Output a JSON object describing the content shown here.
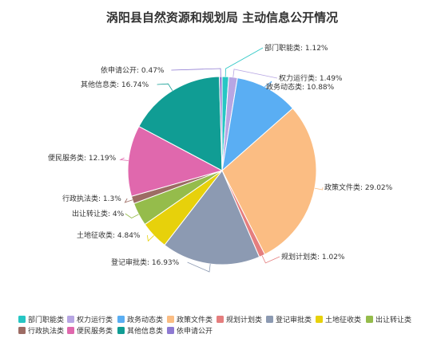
{
  "chart_data": {
    "type": "pie",
    "title": "涡阳县自然资源和规划局  主动信息公开情况",
    "slices": [
      {
        "label": "部门职能类",
        "value": 1.12,
        "display": "部门职能类: 1.12%",
        "color": "#26c6c4"
      },
      {
        "label": "权力运行类",
        "value": 1.49,
        "display": "权力运行类: 1.49%",
        "color": "#b7a6e3"
      },
      {
        "label": "政务动态类",
        "value": 10.88,
        "display": "政务动态类: 10.88%",
        "color": "#5aaef3"
      },
      {
        "label": "政策文件类",
        "value": 29.02,
        "display": "政策文件类: 29.02%",
        "color": "#fbbd83"
      },
      {
        "label": "规划计划类",
        "value": 1.02,
        "display": "规划计划类: 1.02%",
        "color": "#e57e7e"
      },
      {
        "label": "登记审批类",
        "value": 16.93,
        "display": "登记审批类: 16.93%",
        "color": "#8c9ab2"
      },
      {
        "label": "土地征收类",
        "value": 4.84,
        "display": "土地征收类: 4.84%",
        "color": "#e7d10b"
      },
      {
        "label": "出让转让类",
        "value": 4,
        "display": "出让转让类: 4%",
        "color": "#95bc4b"
      },
      {
        "label": "行政执法类",
        "value": 1.3,
        "display": "行政执法类: 1.3%",
        "color": "#9d6c64"
      },
      {
        "label": "便民服务类",
        "value": 12.19,
        "display": "便民服务类: 12.19%",
        "color": "#e068ad"
      },
      {
        "label": "其他信息类",
        "value": 16.74,
        "display": "其他信息类: 16.74%",
        "color": "#109d94"
      },
      {
        "label": "依申请公开",
        "value": 0.47,
        "display": "依申请公开: 0.47%",
        "color": "#8e7ad2"
      }
    ],
    "legend_position": "bottom"
  }
}
